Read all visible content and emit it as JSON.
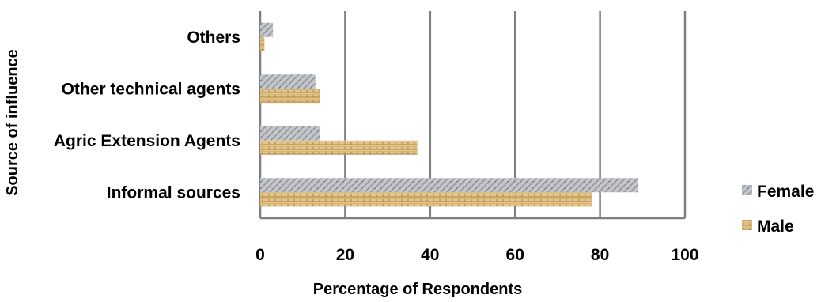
{
  "chart_data": {
    "type": "bar",
    "orientation": "horizontal",
    "categories": [
      "Others",
      "Other technical agents",
      "Agric Extension Agents",
      "Informal sources"
    ],
    "series": [
      {
        "name": "Female",
        "values": [
          3,
          13,
          14,
          89
        ],
        "color": "#b8bcc0"
      },
      {
        "name": "Male",
        "values": [
          1,
          14,
          37,
          78
        ],
        "color": "#d9b574"
      }
    ],
    "xlabel": "Percentage of Respondents",
    "ylabel": "Source of influence",
    "xlim": [
      0,
      100
    ],
    "xticks": [
      0,
      20,
      40,
      60,
      80,
      100
    ],
    "grid": "vertical",
    "legend_position": "right"
  }
}
